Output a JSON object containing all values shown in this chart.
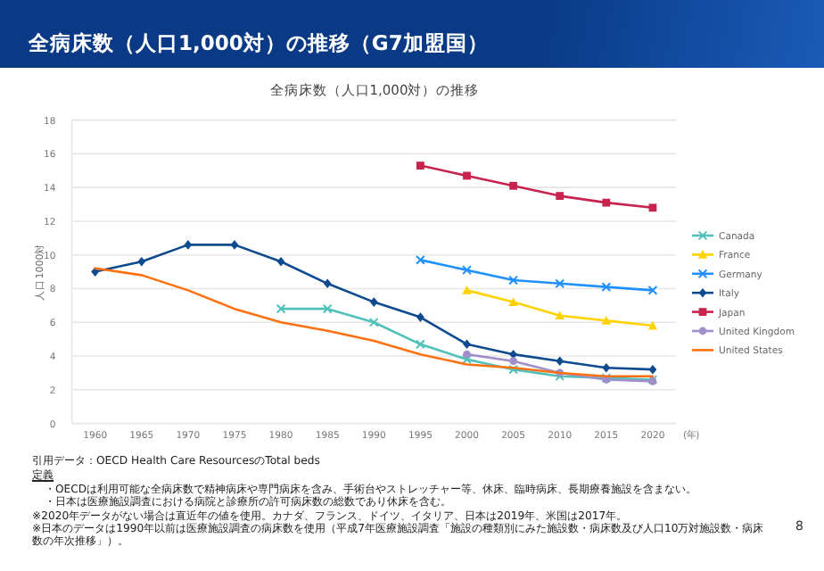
{
  "chart_data": {
    "type": "line",
    "title": "全病床数（人口1,000対）の推移（G7加盟国）",
    "subtitle": "全病床数（人口1,000対）の推移",
    "ylabel": "人口1000対",
    "categories": [
      "1960",
      "1965",
      "1970",
      "1975",
      "1980",
      "1985",
      "1990",
      "1995",
      "2000",
      "2005",
      "2010",
      "2015",
      "2020"
    ],
    "series": [
      {
        "name": "Canada",
        "color": "#4fc1b9",
        "marker": "cross",
        "values": [
          null,
          null,
          null,
          null,
          6.8,
          6.8,
          6.0,
          4.7,
          3.8,
          3.2,
          2.8,
          2.7,
          2.6
        ]
      },
      {
        "name": "France",
        "color": "#ffd200",
        "marker": "triangle",
        "values": [
          null,
          null,
          null,
          null,
          null,
          null,
          null,
          null,
          7.9,
          7.2,
          6.4,
          6.1,
          5.8
        ]
      },
      {
        "name": "Germany",
        "color": "#1e90ff",
        "marker": "cross",
        "values": [
          null,
          null,
          null,
          null,
          null,
          null,
          null,
          9.7,
          9.1,
          8.5,
          8.3,
          8.1,
          7.9
        ]
      },
      {
        "name": "Italy",
        "color": "#0d4a8f",
        "marker": "diamond",
        "values": [
          9.0,
          9.6,
          10.6,
          10.6,
          9.6,
          8.3,
          7.2,
          6.3,
          4.7,
          4.1,
          3.7,
          3.3,
          3.2
        ]
      },
      {
        "name": "Japan",
        "color": "#c8234f",
        "marker": "square",
        "values": [
          null,
          null,
          null,
          null,
          null,
          null,
          null,
          15.3,
          14.7,
          14.1,
          13.5,
          13.1,
          12.8
        ]
      },
      {
        "name": "United Kingdom",
        "color": "#a08fc8",
        "marker": "circle",
        "values": [
          null,
          null,
          null,
          null,
          null,
          null,
          null,
          null,
          4.1,
          3.7,
          3.0,
          2.6,
          2.5
        ]
      },
      {
        "name": "United States",
        "color": "#ff7011",
        "marker": "none",
        "values": [
          9.2,
          8.8,
          7.9,
          6.8,
          6.0,
          5.5,
          4.9,
          4.1,
          3.5,
          3.3,
          3.0,
          2.8,
          2.8
        ]
      }
    ],
    "ylim": [
      0,
      18
    ],
    "yticks": [
      0,
      2,
      4,
      6,
      8,
      10,
      12,
      14,
      16,
      18
    ],
    "grid": "y",
    "legend": "right",
    "line_style": "solid",
    "annotations": [
      "(年)",
      "引用データ：OECD Health Care ResourcesのTotal beds",
      "定義",
      "・OECDは利用可能な全病床数で精神病床や専門病床を含み、手術台やストレッチャー等、休床、臨時病床、長期療養施設を含まない。",
      "・日本は医療施設調査における病院と診療所の許可病床数の総数であり休床を含む。",
      "※2020年データがない場合は直近年の値を使用。カナダ、フランス、ドイツ、イタリア、日本は2019年、米国は2017年。",
      "※日本のデータは1990年以前は医療施設調査の病床数を使用（平成7年医療施設調査「施設の種類別にみた施設数・病床数及び人口10万対施設数・病床数の年次推移」）。",
      "8"
    ]
  }
}
